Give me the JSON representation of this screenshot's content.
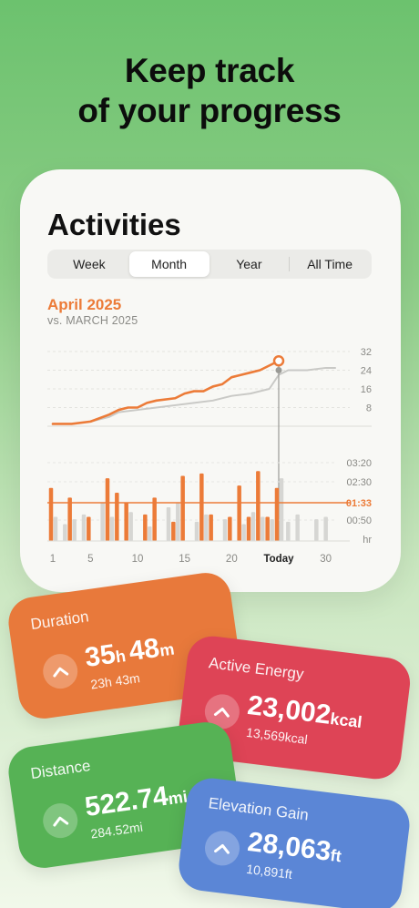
{
  "headline": {
    "line1": "Keep track",
    "line2": "of your progress"
  },
  "card": {
    "title": "Activities",
    "segments": [
      "Week",
      "Month",
      "Year",
      "All Time"
    ],
    "active_segment": "Month",
    "period_label": "April 2025",
    "compare_label": "vs. MARCH 2025"
  },
  "chart_data": {
    "type": "line",
    "x_ticks": [
      "1",
      "5",
      "10",
      "15",
      "20",
      "Today",
      "30"
    ],
    "cumulative": {
      "y_ticks": [
        "32",
        "24",
        "16",
        "8"
      ],
      "ylim": [
        0,
        32
      ],
      "current_series": {
        "name": "April 2025",
        "color": "#ec7b38",
        "x": [
          1,
          3,
          5,
          7,
          8,
          9,
          10,
          11,
          12,
          14,
          15,
          16,
          17,
          18,
          19,
          20,
          21,
          22,
          23,
          24,
          25
        ],
        "values": [
          1,
          1,
          2,
          5,
          7,
          8,
          8,
          10,
          11,
          12,
          14,
          15,
          15,
          17,
          18,
          21,
          22,
          23,
          24,
          26,
          28
        ]
      },
      "previous_series": {
        "name": "MARCH 2025",
        "color": "#c9c9c6",
        "x": [
          1,
          3,
          5,
          7,
          8,
          10,
          12,
          14,
          16,
          18,
          20,
          22,
          24,
          25,
          26,
          28,
          30,
          31
        ],
        "values": [
          1,
          1,
          2,
          4,
          6,
          7,
          8,
          9,
          10,
          11,
          13,
          14,
          16,
          22,
          24,
          24,
          25,
          25
        ]
      },
      "today_marker": {
        "day": 25,
        "current": 28,
        "previous": 24
      }
    },
    "daily": {
      "y_ticks": [
        "03:20",
        "02:30",
        "01:33",
        "00:50",
        "hr"
      ],
      "average_label": "01:33",
      "average_color": "#ec7b38",
      "current_days": [
        1,
        3,
        5,
        7,
        8,
        9,
        11,
        12,
        14,
        15,
        17,
        18,
        20,
        21,
        22,
        23,
        24,
        25
      ],
      "current_values": [
        2.2,
        1.8,
        1.0,
        2.6,
        2.0,
        1.6,
        1.1,
        1.8,
        0.8,
        2.7,
        2.8,
        1.1,
        1.0,
        2.3,
        1.0,
        2.9,
        1.0,
        2.2
      ],
      "previous_days": [
        1,
        2,
        3,
        4,
        6,
        7,
        9,
        11,
        13,
        14,
        16,
        17,
        19,
        21,
        22,
        23,
        24,
        25,
        26,
        27,
        29,
        30
      ],
      "previous_values": [
        1.0,
        0.7,
        0.9,
        1.1,
        1.6,
        1.0,
        1.2,
        0.6,
        1.4,
        1.6,
        0.8,
        1.1,
        0.9,
        0.7,
        1.2,
        1.0,
        0.9,
        2.6,
        0.8,
        1.1,
        0.9,
        1.0
      ]
    }
  },
  "tiles": {
    "duration": {
      "label": "Duration",
      "main_a": "35",
      "unit_a": "h",
      "main_b": "48",
      "unit_b": "m",
      "sub": "23h 43m"
    },
    "energy": {
      "label": "Active Energy",
      "main": "23,002",
      "unit": "kcal",
      "sub": "13,569kcal"
    },
    "distance": {
      "label": "Distance",
      "main": "522.74",
      "unit": "mi",
      "sub": "284.52mi"
    },
    "elevation": {
      "label": "Elevation Gain",
      "main": "28,063",
      "unit": "ft",
      "sub": "10,891ft"
    }
  },
  "icons": {
    "tile_arrow": "chevron-up-icon"
  }
}
